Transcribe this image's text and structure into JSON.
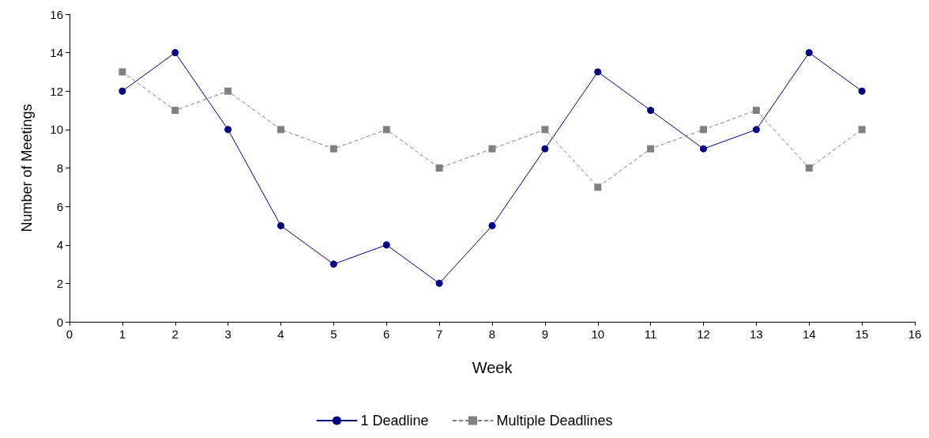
{
  "chart_data": {
    "type": "line",
    "xlabel": "Week",
    "ylabel": "Number of Meetings",
    "x": [
      1,
      2,
      3,
      4,
      5,
      6,
      7,
      8,
      9,
      10,
      11,
      12,
      13,
      14,
      15
    ],
    "series": [
      {
        "name": "1 Deadline",
        "color": "#000080",
        "marker": "circle",
        "line_style": "solid",
        "values": [
          12,
          14,
          10,
          5,
          3,
          4,
          2,
          5,
          9,
          13,
          11,
          9,
          10,
          14,
          12
        ]
      },
      {
        "name": "Multiple Deadlines",
        "color": "#808080",
        "marker": "square",
        "line_style": "dashed",
        "values": [
          13,
          11,
          12,
          10,
          9,
          10,
          8,
          9,
          10,
          7,
          9,
          10,
          11,
          8,
          10
        ]
      }
    ],
    "xlim": [
      0,
      16
    ],
    "xticks": [
      0,
      1,
      2,
      3,
      4,
      5,
      6,
      7,
      8,
      9,
      10,
      11,
      12,
      13,
      14,
      15,
      16
    ],
    "ylim": [
      0,
      16
    ],
    "yticks": [
      0,
      2,
      4,
      6,
      8,
      10,
      12,
      14,
      16
    ],
    "grid": false,
    "legend": "bottom"
  }
}
